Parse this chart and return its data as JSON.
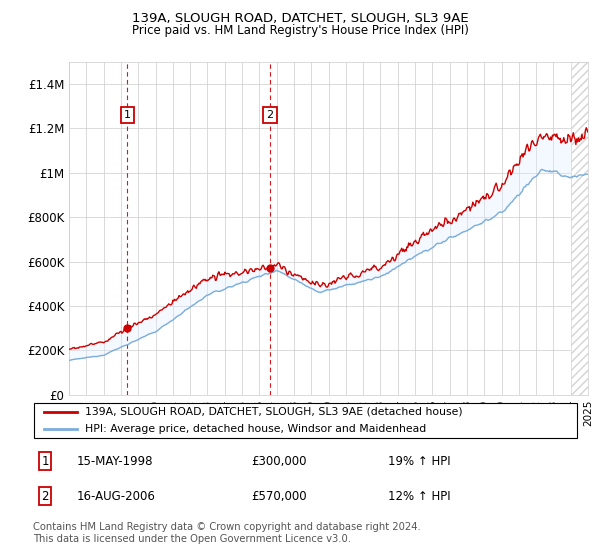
{
  "title1": "139A, SLOUGH ROAD, DATCHET, SLOUGH, SL3 9AE",
  "title2": "Price paid vs. HM Land Registry's House Price Index (HPI)",
  "legend_line1": "139A, SLOUGH ROAD, DATCHET, SLOUGH, SL3 9AE (detached house)",
  "legend_line2": "HPI: Average price, detached house, Windsor and Maidenhead",
  "annotation1_date": "15-MAY-1998",
  "annotation1_price": "£300,000",
  "annotation1_hpi": "19% ↑ HPI",
  "annotation2_date": "16-AUG-2006",
  "annotation2_price": "£570,000",
  "annotation2_hpi": "12% ↑ HPI",
  "footer": "Contains HM Land Registry data © Crown copyright and database right 2024.\nThis data is licensed under the Open Government Licence v3.0.",
  "price_color": "#cc0000",
  "hpi_color": "#7aaddc",
  "shading_color": "#ddeeff",
  "annotation_color": "#cc0000",
  "ylim": [
    0,
    1500000
  ],
  "yticks": [
    0,
    200000,
    400000,
    600000,
    800000,
    1000000,
    1200000,
    1400000
  ],
  "ytick_labels": [
    "£0",
    "£200K",
    "£400K",
    "£600K",
    "£800K",
    "£1M",
    "£1.2M",
    "£1.4M"
  ],
  "sale1_year": 1998.37,
  "sale1_price": 300000,
  "sale2_year": 2006.62,
  "sale2_price": 570000,
  "xlim_start": 1995,
  "xlim_end": 2025
}
